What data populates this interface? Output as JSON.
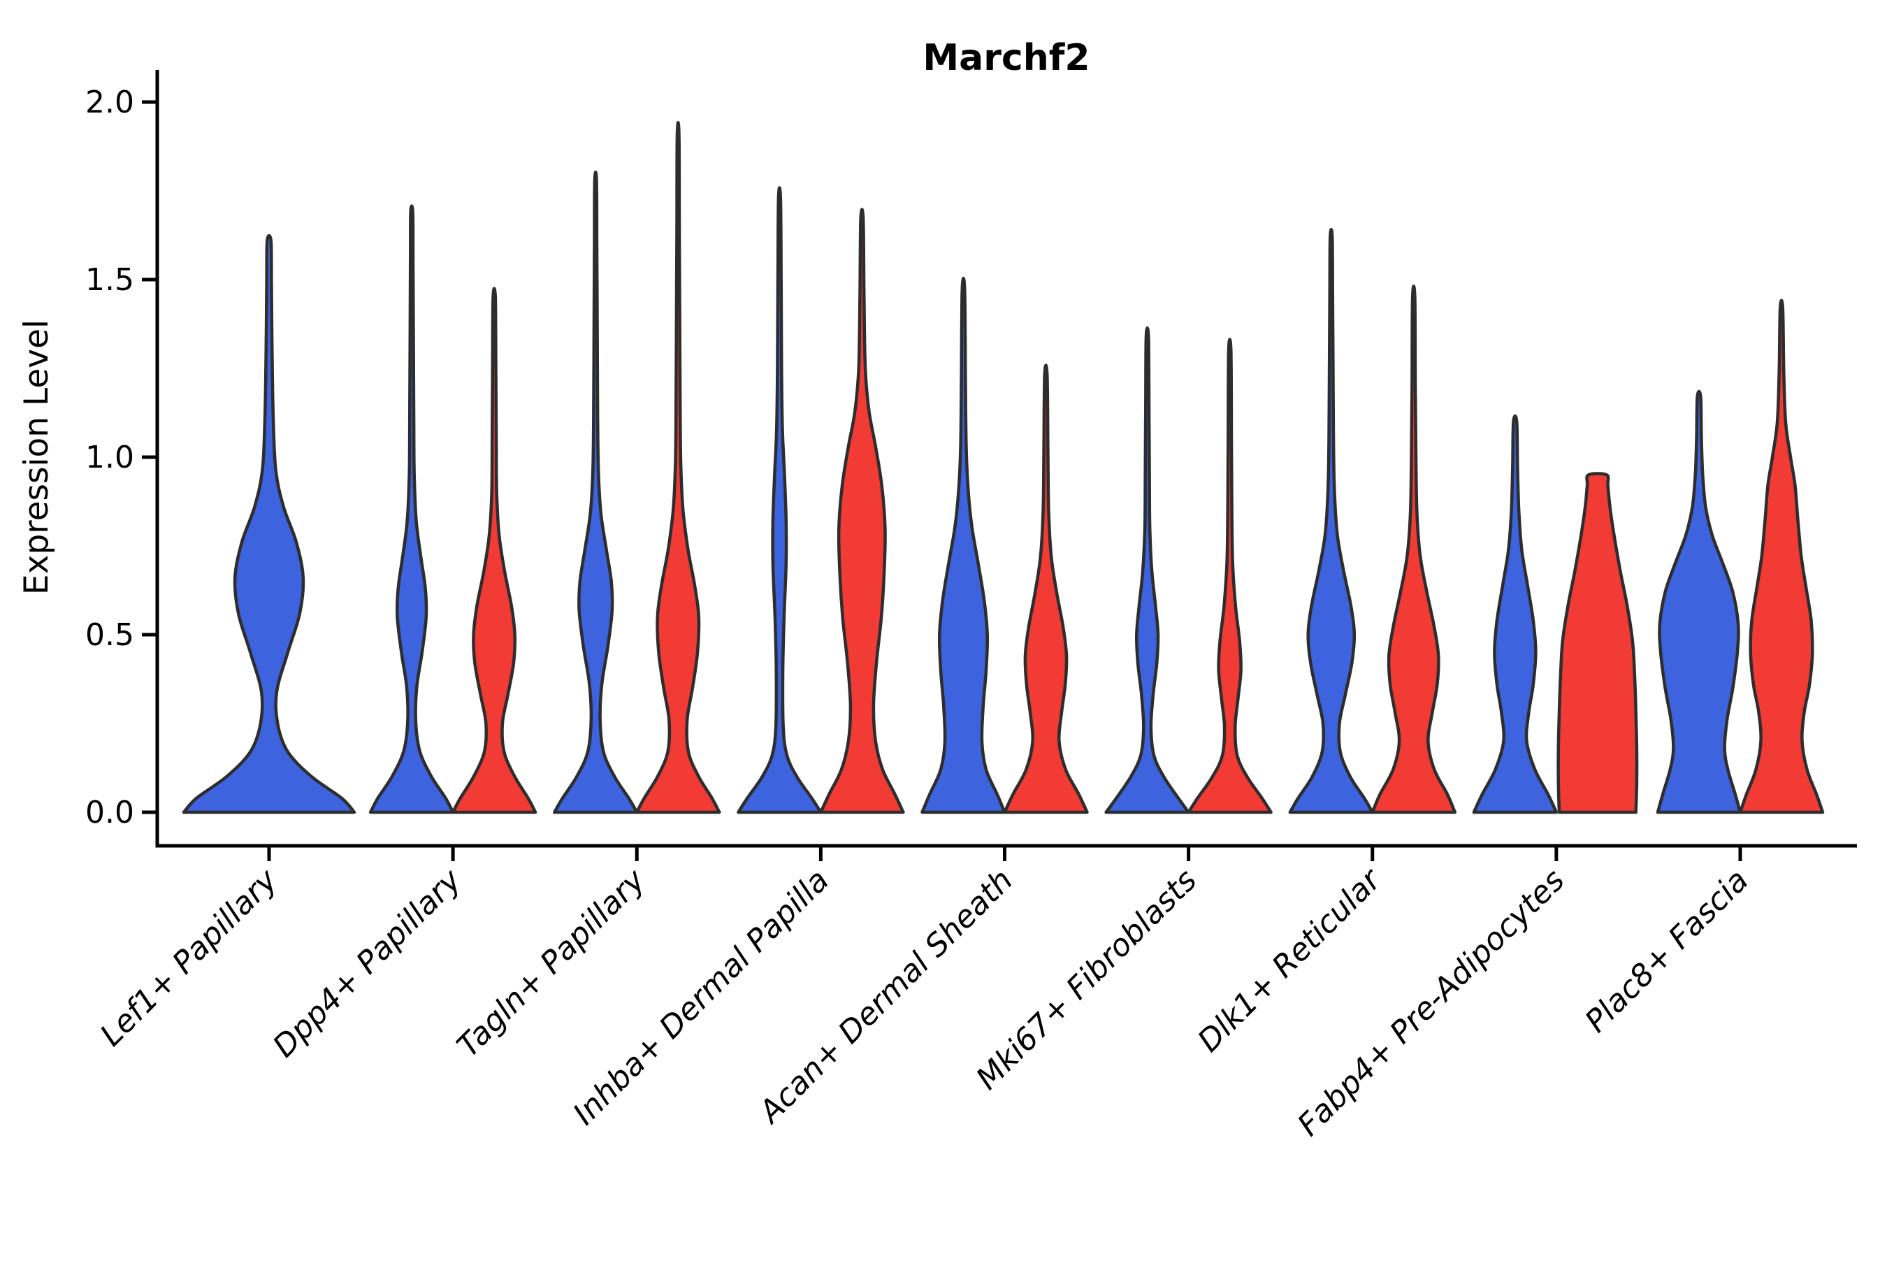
{
  "chart_data": {
    "type": "violin",
    "title": "Marchf2",
    "ylabel": "Expression Level",
    "ylim": [
      0,
      2
    ],
    "yticks": [
      0.0,
      0.5,
      1.0,
      1.5,
      2.0
    ],
    "grid": false,
    "legend": "none",
    "categories": [
      "Lef1+ Papillary",
      "Dpp4+ Papillary",
      "Tagln+ Papillary",
      "Inhba+ Dermal Papilla",
      "Acan+ Dermal Sheath",
      "Mki67+ Fibroblasts",
      "Dlk1+ Reticular",
      "Fabp4+ Pre-Adipocytes",
      "Plac8+ Fascia"
    ],
    "series_colors": {
      "blue": "#3d64de",
      "red": "#f23b35"
    },
    "violins": [
      {
        "category": "Lef1+ Papillary",
        "series": "blue",
        "max": 1.61,
        "profile": [
          [
            0,
            1.0
          ],
          [
            0.04,
            0.85
          ],
          [
            0.1,
            0.5
          ],
          [
            0.17,
            0.22
          ],
          [
            0.25,
            0.1
          ],
          [
            0.34,
            0.09
          ],
          [
            0.45,
            0.22
          ],
          [
            0.56,
            0.36
          ],
          [
            0.66,
            0.4
          ],
          [
            0.76,
            0.32
          ],
          [
            0.86,
            0.17
          ],
          [
            0.96,
            0.08
          ],
          [
            1.1,
            0.05
          ],
          [
            1.3,
            0.035
          ],
          [
            1.5,
            0.028
          ],
          [
            1.61,
            0.022
          ]
        ]
      },
      {
        "category": "Dpp4+ Papillary",
        "series": "blue",
        "max": 1.69,
        "profile": [
          [
            0,
            1.0
          ],
          [
            0.04,
            0.82
          ],
          [
            0.1,
            0.48
          ],
          [
            0.17,
            0.2
          ],
          [
            0.25,
            0.1
          ],
          [
            0.35,
            0.12
          ],
          [
            0.45,
            0.25
          ],
          [
            0.55,
            0.35
          ],
          [
            0.63,
            0.33
          ],
          [
            0.72,
            0.22
          ],
          [
            0.82,
            0.11
          ],
          [
            0.95,
            0.06
          ],
          [
            1.1,
            0.05
          ],
          [
            1.35,
            0.04
          ],
          [
            1.55,
            0.032
          ],
          [
            1.69,
            0.025
          ]
        ]
      },
      {
        "category": "Dpp4+ Papillary",
        "series": "red",
        "max": 1.45,
        "profile": [
          [
            0,
            1.0
          ],
          [
            0.04,
            0.82
          ],
          [
            0.1,
            0.5
          ],
          [
            0.17,
            0.24
          ],
          [
            0.25,
            0.2
          ],
          [
            0.33,
            0.33
          ],
          [
            0.42,
            0.47
          ],
          [
            0.5,
            0.5
          ],
          [
            0.58,
            0.42
          ],
          [
            0.68,
            0.25
          ],
          [
            0.78,
            0.12
          ],
          [
            0.9,
            0.06
          ],
          [
            1.05,
            0.05
          ],
          [
            1.25,
            0.04
          ],
          [
            1.45,
            0.028
          ]
        ]
      },
      {
        "category": "Tagln+ Papillary",
        "series": "blue",
        "max": 1.78,
        "profile": [
          [
            0,
            1.0
          ],
          [
            0.04,
            0.8
          ],
          [
            0.1,
            0.46
          ],
          [
            0.17,
            0.19
          ],
          [
            0.26,
            0.11
          ],
          [
            0.36,
            0.15
          ],
          [
            0.47,
            0.3
          ],
          [
            0.57,
            0.4
          ],
          [
            0.65,
            0.38
          ],
          [
            0.74,
            0.26
          ],
          [
            0.84,
            0.13
          ],
          [
            0.95,
            0.07
          ],
          [
            1.1,
            0.05
          ],
          [
            1.35,
            0.04
          ],
          [
            1.6,
            0.03
          ],
          [
            1.78,
            0.022
          ]
        ]
      },
      {
        "category": "Tagln+ Papillary",
        "series": "red",
        "max": 1.91,
        "profile": [
          [
            0,
            1.0
          ],
          [
            0.04,
            0.82
          ],
          [
            0.1,
            0.5
          ],
          [
            0.17,
            0.25
          ],
          [
            0.26,
            0.22
          ],
          [
            0.35,
            0.35
          ],
          [
            0.45,
            0.47
          ],
          [
            0.55,
            0.5
          ],
          [
            0.64,
            0.4
          ],
          [
            0.74,
            0.24
          ],
          [
            0.85,
            0.12
          ],
          [
            0.98,
            0.065
          ],
          [
            1.15,
            0.05
          ],
          [
            1.4,
            0.04
          ],
          [
            1.65,
            0.03
          ],
          [
            1.91,
            0.022
          ]
        ]
      },
      {
        "category": "Inhba+ Dermal Papilla",
        "series": "blue",
        "max": 1.73,
        "profile": [
          [
            0,
            1.0
          ],
          [
            0.04,
            0.78
          ],
          [
            0.1,
            0.42
          ],
          [
            0.16,
            0.18
          ],
          [
            0.24,
            0.09
          ],
          [
            0.4,
            0.08
          ],
          [
            0.55,
            0.11
          ],
          [
            0.7,
            0.16
          ],
          [
            0.82,
            0.16
          ],
          [
            0.95,
            0.12
          ],
          [
            1.08,
            0.07
          ],
          [
            1.25,
            0.05
          ],
          [
            1.5,
            0.04
          ],
          [
            1.73,
            0.025
          ]
        ]
      },
      {
        "category": "Inhba+ Dermal Papilla",
        "series": "red",
        "max": 1.67,
        "profile": [
          [
            0,
            1.0
          ],
          [
            0.05,
            0.8
          ],
          [
            0.12,
            0.5
          ],
          [
            0.2,
            0.33
          ],
          [
            0.3,
            0.28
          ],
          [
            0.42,
            0.35
          ],
          [
            0.55,
            0.47
          ],
          [
            0.68,
            0.54
          ],
          [
            0.8,
            0.56
          ],
          [
            0.92,
            0.48
          ],
          [
            1.03,
            0.33
          ],
          [
            1.13,
            0.17
          ],
          [
            1.25,
            0.08
          ],
          [
            1.45,
            0.05
          ],
          [
            1.67,
            0.03
          ]
        ]
      },
      {
        "category": "Acan+ Dermal Sheath",
        "series": "blue",
        "max": 1.47,
        "profile": [
          [
            0,
            1.0
          ],
          [
            0.05,
            0.82
          ],
          [
            0.12,
            0.55
          ],
          [
            0.2,
            0.45
          ],
          [
            0.3,
            0.48
          ],
          [
            0.4,
            0.55
          ],
          [
            0.5,
            0.58
          ],
          [
            0.6,
            0.5
          ],
          [
            0.7,
            0.36
          ],
          [
            0.8,
            0.21
          ],
          [
            0.9,
            0.12
          ],
          [
            1.02,
            0.07
          ],
          [
            1.2,
            0.05
          ],
          [
            1.47,
            0.03
          ]
        ]
      },
      {
        "category": "Acan+ Dermal Sheath",
        "series": "red",
        "max": 1.23,
        "profile": [
          [
            0,
            1.0
          ],
          [
            0.05,
            0.8
          ],
          [
            0.12,
            0.48
          ],
          [
            0.2,
            0.32
          ],
          [
            0.28,
            0.38
          ],
          [
            0.36,
            0.47
          ],
          [
            0.44,
            0.5
          ],
          [
            0.52,
            0.42
          ],
          [
            0.62,
            0.26
          ],
          [
            0.72,
            0.13
          ],
          [
            0.84,
            0.07
          ],
          [
            1.0,
            0.05
          ],
          [
            1.23,
            0.03
          ]
        ]
      },
      {
        "category": "Mki67+ Fibroblasts",
        "series": "blue",
        "max": 1.34,
        "profile": [
          [
            0,
            1.0
          ],
          [
            0.04,
            0.75
          ],
          [
            0.1,
            0.4
          ],
          [
            0.16,
            0.16
          ],
          [
            0.24,
            0.09
          ],
          [
            0.33,
            0.14
          ],
          [
            0.42,
            0.23
          ],
          [
            0.5,
            0.26
          ],
          [
            0.58,
            0.2
          ],
          [
            0.68,
            0.11
          ],
          [
            0.8,
            0.06
          ],
          [
            0.95,
            0.05
          ],
          [
            1.15,
            0.04
          ],
          [
            1.34,
            0.028
          ]
        ]
      },
      {
        "category": "Mki67+ Fibroblasts",
        "series": "red",
        "max": 1.3,
        "profile": [
          [
            0,
            1.0
          ],
          [
            0.04,
            0.78
          ],
          [
            0.1,
            0.42
          ],
          [
            0.16,
            0.18
          ],
          [
            0.24,
            0.13
          ],
          [
            0.32,
            0.2
          ],
          [
            0.4,
            0.27
          ],
          [
            0.48,
            0.24
          ],
          [
            0.58,
            0.14
          ],
          [
            0.7,
            0.07
          ],
          [
            0.85,
            0.05
          ],
          [
            1.05,
            0.04
          ],
          [
            1.3,
            0.028
          ]
        ]
      },
      {
        "category": "Dlk1+ Reticular",
        "series": "blue",
        "max": 1.62,
        "profile": [
          [
            0,
            1.0
          ],
          [
            0.04,
            0.8
          ],
          [
            0.1,
            0.46
          ],
          [
            0.17,
            0.22
          ],
          [
            0.25,
            0.2
          ],
          [
            0.33,
            0.34
          ],
          [
            0.42,
            0.5
          ],
          [
            0.5,
            0.56
          ],
          [
            0.58,
            0.48
          ],
          [
            0.68,
            0.3
          ],
          [
            0.78,
            0.15
          ],
          [
            0.9,
            0.08
          ],
          [
            1.05,
            0.055
          ],
          [
            1.25,
            0.045
          ],
          [
            1.45,
            0.035
          ],
          [
            1.62,
            0.025
          ]
        ]
      },
      {
        "category": "Dlk1+ Reticular",
        "series": "red",
        "max": 1.45,
        "profile": [
          [
            0,
            1.0
          ],
          [
            0.05,
            0.82
          ],
          [
            0.12,
            0.5
          ],
          [
            0.2,
            0.35
          ],
          [
            0.28,
            0.45
          ],
          [
            0.36,
            0.57
          ],
          [
            0.44,
            0.6
          ],
          [
            0.52,
            0.5
          ],
          [
            0.62,
            0.32
          ],
          [
            0.72,
            0.16
          ],
          [
            0.84,
            0.08
          ],
          [
            1.0,
            0.055
          ],
          [
            1.2,
            0.04
          ],
          [
            1.45,
            0.028
          ]
        ]
      },
      {
        "category": "Fabp4+ Pre-Adipocytes",
        "series": "blue",
        "max": 1.1,
        "profile": [
          [
            0,
            1.0
          ],
          [
            0.05,
            0.8
          ],
          [
            0.12,
            0.48
          ],
          [
            0.2,
            0.28
          ],
          [
            0.28,
            0.33
          ],
          [
            0.36,
            0.44
          ],
          [
            0.45,
            0.5
          ],
          [
            0.54,
            0.44
          ],
          [
            0.64,
            0.3
          ],
          [
            0.74,
            0.16
          ],
          [
            0.85,
            0.09
          ],
          [
            0.97,
            0.06
          ],
          [
            1.1,
            0.04
          ]
        ]
      },
      {
        "category": "Fabp4+ Pre-Adipocytes",
        "series": "red",
        "max": 0.95,
        "flat_top": true,
        "profile": [
          [
            0,
            0.93
          ],
          [
            0.08,
            0.95
          ],
          [
            0.18,
            0.95
          ],
          [
            0.28,
            0.93
          ],
          [
            0.38,
            0.9
          ],
          [
            0.48,
            0.85
          ],
          [
            0.58,
            0.72
          ],
          [
            0.68,
            0.55
          ],
          [
            0.78,
            0.4
          ],
          [
            0.86,
            0.3
          ],
          [
            0.92,
            0.25
          ],
          [
            0.95,
            0.22
          ]
        ]
      },
      {
        "category": "Plac8+ Fascia",
        "series": "blue",
        "max": 1.17,
        "profile": [
          [
            0,
            1.0
          ],
          [
            0.05,
            0.88
          ],
          [
            0.12,
            0.7
          ],
          [
            0.18,
            0.62
          ],
          [
            0.26,
            0.68
          ],
          [
            0.35,
            0.82
          ],
          [
            0.45,
            0.93
          ],
          [
            0.53,
            0.95
          ],
          [
            0.62,
            0.82
          ],
          [
            0.7,
            0.58
          ],
          [
            0.78,
            0.32
          ],
          [
            0.86,
            0.16
          ],
          [
            0.95,
            0.09
          ],
          [
            1.05,
            0.06
          ],
          [
            1.17,
            0.04
          ]
        ]
      },
      {
        "category": "Plac8+ Fascia",
        "series": "red",
        "max": 1.42,
        "profile": [
          [
            0,
            1.0
          ],
          [
            0.05,
            0.85
          ],
          [
            0.12,
            0.62
          ],
          [
            0.2,
            0.5
          ],
          [
            0.28,
            0.55
          ],
          [
            0.36,
            0.68
          ],
          [
            0.45,
            0.75
          ],
          [
            0.54,
            0.72
          ],
          [
            0.63,
            0.6
          ],
          [
            0.72,
            0.48
          ],
          [
            0.82,
            0.4
          ],
          [
            0.92,
            0.33
          ],
          [
            1.0,
            0.22
          ],
          [
            1.1,
            0.1
          ],
          [
            1.25,
            0.055
          ],
          [
            1.42,
            0.03
          ]
        ]
      }
    ]
  }
}
